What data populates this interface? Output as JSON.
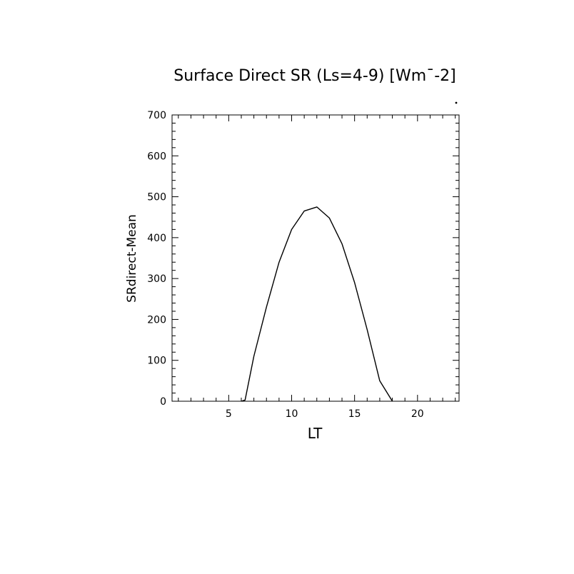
{
  "chart_data": {
    "type": "line",
    "title": "Surface Direct SR (Ls=4-9) [Wm¯-2]",
    "xlabel": "LT",
    "ylabel": "SRdirect-Mean",
    "xlim": [
      0.5,
      23.3
    ],
    "ylim": [
      0,
      700
    ],
    "x_ticks": [
      5,
      10,
      15,
      20
    ],
    "y_ticks": [
      0,
      100,
      200,
      300,
      400,
      500,
      600,
      700
    ],
    "grid": false,
    "series": [
      {
        "x": [
          6.0,
          6.3,
          7.0,
          8.0,
          9.0,
          10.0,
          11.0,
          12.0,
          13.0,
          14.0,
          15.0,
          16.0,
          17.0,
          18.0
        ],
        "values": [
          0,
          3,
          110,
          230,
          340,
          420,
          465,
          475,
          448,
          385,
          290,
          175,
          50,
          0
        ]
      }
    ]
  }
}
